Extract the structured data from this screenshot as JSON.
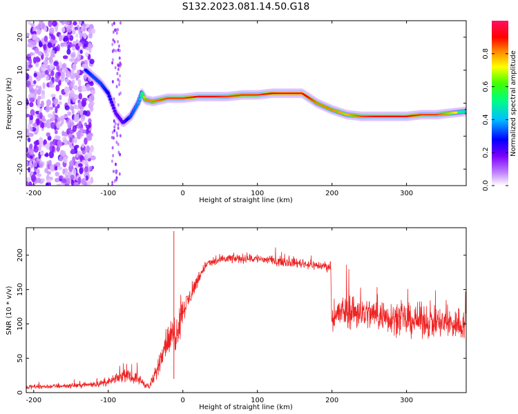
{
  "figure_title": "S132.2023.081.14.50.G18",
  "chart_data": [
    {
      "type": "heatmap",
      "xlabel": "Height of straight line (km)",
      "ylabel": "Frequency (Hz)",
      "xlim": [
        -210,
        380
      ],
      "ylim": [
        -25,
        25
      ],
      "xticks": [
        -200,
        -100,
        0,
        100,
        200,
        300
      ],
      "yticks": [
        -20,
        -10,
        0,
        10,
        20
      ],
      "colorbar": {
        "label": "Normalized spectral amplitude",
        "range": [
          0,
          1
        ],
        "ticks": [
          "0.0",
          "0.2",
          "0.4",
          "0.6",
          "0.8"
        ],
        "colormap": [
          "#ffffff",
          "#c080ff",
          "#7b00ff",
          "#0000ff",
          "#00bfff",
          "#00ff7f",
          "#40ff00",
          "#ffff00",
          "#ff8000",
          "#ff0000",
          "#ff1060"
        ]
      },
      "ridge": {
        "x": [
          -130,
          -120,
          -110,
          -100,
          -90,
          -80,
          -70,
          -60,
          -55,
          -50,
          -40,
          -20,
          0,
          20,
          40,
          60,
          80,
          100,
          120,
          140,
          160,
          180,
          200,
          220,
          240,
          260,
          280,
          300,
          320,
          340,
          360,
          380
        ],
        "y": [
          10,
          8,
          6,
          3,
          -3,
          -6,
          -4,
          0,
          3,
          1,
          0.5,
          1.5,
          1.5,
          2,
          2,
          2,
          2.5,
          2.5,
          3,
          3,
          3,
          0,
          -2,
          -3.5,
          -4,
          -4,
          -4,
          -4,
          -3.5,
          -3.5,
          -3,
          -2.5
        ],
        "amplitude": [
          0.4,
          0.45,
          0.45,
          0.4,
          0.3,
          0.3,
          0.45,
          0.5,
          0.65,
          0.8,
          0.8,
          0.85,
          0.85,
          0.9,
          0.9,
          0.85,
          0.85,
          0.85,
          0.9,
          0.95,
          0.95,
          0.8,
          0.8,
          0.75,
          0.85,
          0.9,
          0.9,
          0.9,
          0.85,
          0.85,
          0.75,
          0.6
        ]
      },
      "noise_region_x": [
        -210,
        -120
      ]
    },
    {
      "type": "line",
      "xlabel": "Height of straight line (km)",
      "ylabel": "SNR (10 * v/v)",
      "xlim": [
        -210,
        380
      ],
      "ylim": [
        0,
        240
      ],
      "xticks": [
        -200,
        -100,
        0,
        100,
        200,
        300
      ],
      "yticks": [
        0,
        50,
        100,
        150,
        200
      ],
      "color": "#ee2222",
      "series": [
        {
          "x": [
            -210,
            -150,
            -120,
            -100,
            -80,
            -60,
            -45,
            -35,
            -25,
            -15,
            -10,
            -5,
            0,
            10,
            20,
            30,
            40,
            60,
            80,
            100,
            120,
            140,
            160,
            180,
            198,
            200,
            220,
            250,
            280,
            300,
            320,
            350,
            380
          ],
          "mean": [
            8,
            10,
            12,
            15,
            25,
            20,
            8,
            30,
            70,
            80,
            90,
            100,
            120,
            140,
            165,
            185,
            190,
            195,
            195,
            195,
            192,
            190,
            188,
            185,
            183,
            110,
            120,
            115,
            110,
            105,
            105,
            100,
            100
          ],
          "spread": [
            5,
            5,
            6,
            8,
            12,
            12,
            6,
            20,
            30,
            40,
            50,
            40,
            25,
            20,
            15,
            10,
            10,
            10,
            10,
            10,
            10,
            10,
            10,
            10,
            10,
            30,
            40,
            35,
            35,
            35,
            35,
            35,
            35
          ]
        }
      ],
      "spike": {
        "x": -12,
        "y": 235
      }
    }
  ]
}
